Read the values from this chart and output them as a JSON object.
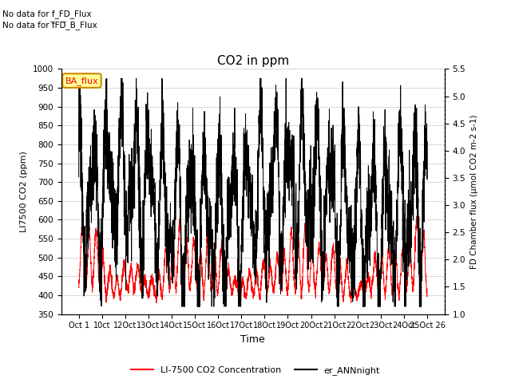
{
  "title": "CO2 in ppm",
  "xlabel": "Time",
  "ylabel_left": "LI7500 CO2 (ppm)",
  "ylabel_right": "FD Chamber flux (μmol CO2 m-2 s-1)",
  "text_no_data1": "No data for f_FD_Flux",
  "text_no_data2": "No data for f̅FD̅_B_Flux",
  "legend_box_label": "BA_flux",
  "legend_box_color": "#ffff99",
  "legend_box_edge": "#cc8800",
  "ylim_left": [
    350,
    1000
  ],
  "ylim_right": [
    1.0,
    5.5
  ],
  "yticks_left": [
    350,
    400,
    450,
    500,
    550,
    600,
    650,
    700,
    750,
    800,
    850,
    900,
    950,
    1000
  ],
  "yticks_right": [
    1.0,
    1.5,
    2.0,
    2.5,
    3.0,
    3.5,
    4.0,
    4.5,
    5.0,
    5.5
  ],
  "xtick_labels": [
    "Oct 1",
    "10ct",
    "12Oct",
    "13Oct",
    "14Oct",
    "15Oct",
    "16Oct",
    "17Oct",
    "18Oct",
    "19Oct",
    "20Oct",
    "21Oct",
    "22Oct",
    "23Oct",
    "24Oct",
    "25Oct 26"
  ],
  "color_red": "#ff0000",
  "color_black": "#000000",
  "color_gray_grid": "#c8c8c8",
  "legend_label_red": "LI-7500 CO2 Concentration",
  "legend_label_black": "er_ANNnight",
  "n_points": 3000,
  "seed": 42
}
